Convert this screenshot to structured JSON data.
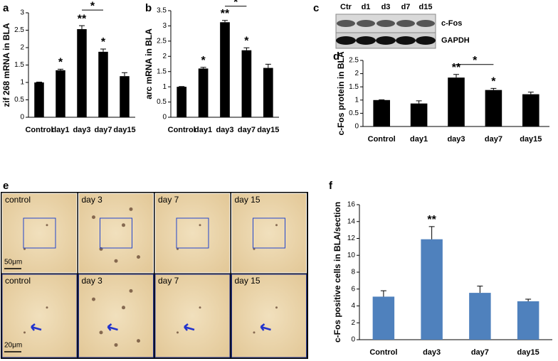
{
  "chart_data": [
    {
      "panel": "a",
      "type": "bar",
      "ylabel": "zif 268 mRNA in BLA",
      "color": "#000000",
      "categories": [
        "Control",
        "day1",
        "day3",
        "day7",
        "day15"
      ],
      "values": [
        1.0,
        1.35,
        2.53,
        1.88,
        1.18
      ],
      "errors": [
        0.01,
        0.03,
        0.1,
        0.08,
        0.1
      ],
      "significance": [
        null,
        "*",
        "**",
        "*",
        null
      ],
      "comparisons": [
        {
          "from": 2,
          "to": 3,
          "label": "*"
        }
      ],
      "ylim": [
        0,
        3
      ],
      "yticks": [
        0,
        0.5,
        1,
        1.5,
        2,
        2.5,
        3
      ]
    },
    {
      "panel": "b",
      "type": "bar",
      "ylabel": "arc mRNA in BLA",
      "color": "#000000",
      "categories": [
        "Control",
        "day1",
        "day3",
        "day7",
        "day15"
      ],
      "values": [
        1.0,
        1.6,
        3.12,
        2.2,
        1.62
      ],
      "errors": [
        0.01,
        0.04,
        0.06,
        0.08,
        0.12
      ],
      "significance": [
        null,
        "*",
        "**",
        "*",
        null
      ],
      "comparisons": [
        {
          "from": 2,
          "to": 3,
          "label": "*"
        }
      ],
      "ylim": [
        0,
        3.5
      ],
      "yticks": [
        0,
        0.5,
        1,
        1.5,
        2,
        2.5,
        3,
        3.5
      ]
    },
    {
      "panel": "d",
      "type": "bar",
      "ylabel": "c-Fos protein in BLA",
      "color": "#000000",
      "categories": [
        "Control",
        "day1",
        "day3",
        "day7",
        "day15"
      ],
      "values": [
        1.0,
        0.87,
        1.85,
        1.38,
        1.22
      ],
      "errors": [
        0.01,
        0.1,
        0.12,
        0.06,
        0.08
      ],
      "significance": [
        null,
        null,
        "**",
        "*",
        null
      ],
      "comparisons": [
        {
          "from": 2,
          "to": 3,
          "label": "*"
        }
      ],
      "ylim": [
        0,
        2.5
      ],
      "yticks": [
        0,
        0.5,
        1,
        1.5,
        2,
        2.5
      ]
    },
    {
      "panel": "f",
      "type": "bar",
      "ylabel": "c-Fos positive cells in BLA/section",
      "color": "#4f81bd",
      "categories": [
        "Control",
        "day3",
        "day7",
        "day15"
      ],
      "values": [
        5.1,
        11.9,
        5.55,
        4.55
      ],
      "errors": [
        0.7,
        1.5,
        0.8,
        0.25
      ],
      "significance": [
        null,
        "**",
        null,
        null
      ],
      "comparisons": [],
      "ylim": [
        0,
        16
      ],
      "yticks": [
        0,
        2,
        4,
        6,
        8,
        10,
        12,
        14,
        16
      ]
    }
  ],
  "blot": {
    "panel": "c",
    "lanes": [
      "Ctr",
      "d1",
      "d3",
      "d7",
      "d15"
    ],
    "bands": [
      "c-Fos",
      "GAPDH"
    ]
  },
  "micrographs": {
    "panel": "e",
    "top_labels": [
      "control",
      "day 3",
      "day 7",
      "day 15"
    ],
    "bottom_labels": [
      "control",
      "day 3",
      "day 7",
      "day 15"
    ],
    "scale_bars": [
      "50μm",
      "20μm"
    ]
  }
}
